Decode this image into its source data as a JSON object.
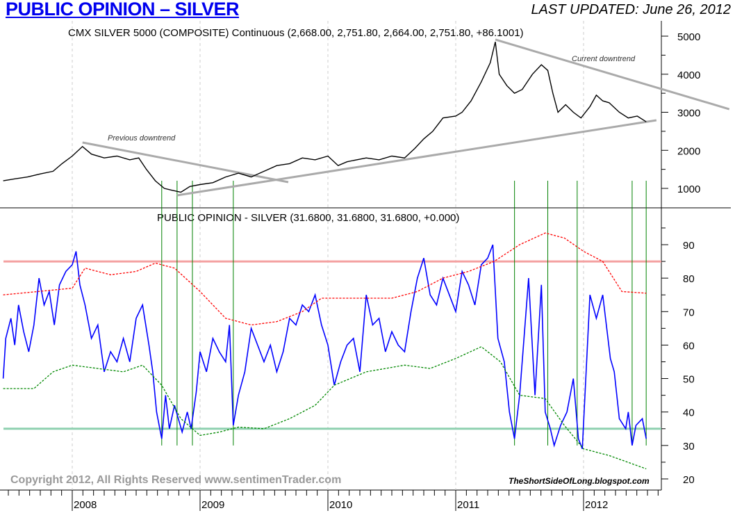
{
  "header": {
    "title": "PUBLIC OPINION – SILVER",
    "updated": "LAST UPDATED:  June 26, 2012"
  },
  "chart_data": [
    {
      "type": "line",
      "title": "CMX SILVER 5000 (COMPOSITE) Continuous (2,668.00, 2,751.80, 2,664.00, 2,751.80, +86.1001)",
      "ylim": [
        500,
        5400
      ],
      "yticks": [
        1000,
        2000,
        3000,
        4000,
        5000
      ],
      "series": [
        {
          "name": "CMX Silver",
          "color": "#000000",
          "points": [
            [
              2007.46,
              1200
            ],
            [
              2007.55,
              1250
            ],
            [
              2007.65,
              1300
            ],
            [
              2007.75,
              1380
            ],
            [
              2007.85,
              1450
            ],
            [
              2007.92,
              1650
            ],
            [
              2008.0,
              1850
            ],
            [
              2008.08,
              2100
            ],
            [
              2008.15,
              1900
            ],
            [
              2008.25,
              1800
            ],
            [
              2008.35,
              1850
            ],
            [
              2008.45,
              1750
            ],
            [
              2008.52,
              1800
            ],
            [
              2008.58,
              1500
            ],
            [
              2008.65,
              1200
            ],
            [
              2008.72,
              1000
            ],
            [
              2008.78,
              950
            ],
            [
              2008.85,
              900
            ],
            [
              2008.92,
              1050
            ],
            [
              2009.0,
              1100
            ],
            [
              2009.1,
              1150
            ],
            [
              2009.2,
              1300
            ],
            [
              2009.3,
              1400
            ],
            [
              2009.4,
              1300
            ],
            [
              2009.5,
              1450
            ],
            [
              2009.6,
              1600
            ],
            [
              2009.7,
              1650
            ],
            [
              2009.8,
              1800
            ],
            [
              2009.9,
              1750
            ],
            [
              2010.0,
              1850
            ],
            [
              2010.08,
              1600
            ],
            [
              2010.15,
              1700
            ],
            [
              2010.3,
              1800
            ],
            [
              2010.4,
              1750
            ],
            [
              2010.5,
              1850
            ],
            [
              2010.6,
              1800
            ],
            [
              2010.68,
              2050
            ],
            [
              2010.75,
              2300
            ],
            [
              2010.82,
              2500
            ],
            [
              2010.9,
              2850
            ],
            [
              2011.0,
              2900
            ],
            [
              2011.05,
              3000
            ],
            [
              2011.12,
              3300
            ],
            [
              2011.2,
              3800
            ],
            [
              2011.27,
              4300
            ],
            [
              2011.31,
              4850
            ],
            [
              2011.34,
              4000
            ],
            [
              2011.4,
              3700
            ],
            [
              2011.46,
              3500
            ],
            [
              2011.52,
              3600
            ],
            [
              2011.6,
              4000
            ],
            [
              2011.67,
              4250
            ],
            [
              2011.72,
              4100
            ],
            [
              2011.76,
              3500
            ],
            [
              2011.8,
              3000
            ],
            [
              2011.86,
              3200
            ],
            [
              2011.92,
              3000
            ],
            [
              2011.98,
              2850
            ],
            [
              2012.05,
              3150
            ],
            [
              2012.1,
              3450
            ],
            [
              2012.15,
              3300
            ],
            [
              2012.2,
              3250
            ],
            [
              2012.28,
              3000
            ],
            [
              2012.35,
              2850
            ],
            [
              2012.42,
              2900
            ],
            [
              2012.49,
              2750
            ]
          ]
        }
      ],
      "trendlines": [
        {
          "label": "Previous downtrend",
          "points": [
            [
              2008.08,
              2206
            ],
            [
              2009.69,
              1164
            ]
          ]
        },
        {
          "label": "Current downtrend",
          "points": [
            [
              2011.31,
              4909
            ],
            [
              2013.14,
              3082
            ]
          ]
        },
        {
          "label": "",
          "points": [
            [
              2008.82,
              818
            ],
            [
              2012.57,
              2790
            ]
          ]
        }
      ]
    },
    {
      "type": "line",
      "title": "PUBLIC OPINION - SILVER (31.6800, 31.6800, 31.6800, +0.000)",
      "ylim": [
        15,
        97
      ],
      "yticks": [
        20,
        30,
        40,
        50,
        60,
        70,
        80,
        90
      ],
      "xticks": [
        "2008",
        "2009",
        "2010",
        "2011",
        "2012"
      ],
      "xtick_values": [
        2008,
        2009,
        2010,
        2011,
        2012
      ],
      "hlines": [
        {
          "value": 85,
          "color": "#f4a0a0"
        },
        {
          "value": 35,
          "color": "#8fd0b0"
        }
      ],
      "marker_dates": [
        2008.7,
        2008.82,
        2008.94,
        2009.26,
        2011.46,
        2011.72,
        2011.95,
        2012.38,
        2012.49
      ],
      "series": [
        {
          "name": "Public Opinion",
          "color": "#0000ff",
          "points": [
            [
              2007.46,
              50
            ],
            [
              2007.48,
              62
            ],
            [
              2007.52,
              68
            ],
            [
              2007.55,
              60
            ],
            [
              2007.58,
              72
            ],
            [
              2007.62,
              64
            ],
            [
              2007.66,
              58
            ],
            [
              2007.7,
              66
            ],
            [
              2007.74,
              80
            ],
            [
              2007.78,
              72
            ],
            [
              2007.82,
              76
            ],
            [
              2007.86,
              66
            ],
            [
              2007.9,
              78
            ],
            [
              2007.95,
              82
            ],
            [
              2008.0,
              84
            ],
            [
              2008.03,
              88
            ],
            [
              2008.06,
              78
            ],
            [
              2008.1,
              72
            ],
            [
              2008.15,
              62
            ],
            [
              2008.2,
              66
            ],
            [
              2008.25,
              52
            ],
            [
              2008.3,
              58
            ],
            [
              2008.35,
              55
            ],
            [
              2008.4,
              62
            ],
            [
              2008.45,
              55
            ],
            [
              2008.5,
              68
            ],
            [
              2008.55,
              72
            ],
            [
              2008.6,
              60
            ],
            [
              2008.63,
              52
            ],
            [
              2008.66,
              40
            ],
            [
              2008.7,
              32
            ],
            [
              2008.73,
              45
            ],
            [
              2008.76,
              35
            ],
            [
              2008.8,
              42
            ],
            [
              2008.83,
              38
            ],
            [
              2008.86,
              34
            ],
            [
              2008.9,
              40
            ],
            [
              2008.93,
              35
            ],
            [
              2008.97,
              46
            ],
            [
              2009.0,
              58
            ],
            [
              2009.05,
              52
            ],
            [
              2009.1,
              62
            ],
            [
              2009.15,
              58
            ],
            [
              2009.2,
              55
            ],
            [
              2009.23,
              66
            ],
            [
              2009.26,
              36
            ],
            [
              2009.3,
              45
            ],
            [
              2009.35,
              52
            ],
            [
              2009.4,
              65
            ],
            [
              2009.5,
              55
            ],
            [
              2009.55,
              60
            ],
            [
              2009.6,
              52
            ],
            [
              2009.65,
              58
            ],
            [
              2009.7,
              68
            ],
            [
              2009.75,
              66
            ],
            [
              2009.8,
              72
            ],
            [
              2009.85,
              70
            ],
            [
              2009.9,
              75
            ],
            [
              2009.95,
              66
            ],
            [
              2010.0,
              60
            ],
            [
              2010.05,
              48
            ],
            [
              2010.1,
              55
            ],
            [
              2010.15,
              60
            ],
            [
              2010.2,
              62
            ],
            [
              2010.25,
              52
            ],
            [
              2010.3,
              75
            ],
            [
              2010.35,
              66
            ],
            [
              2010.4,
              68
            ],
            [
              2010.45,
              58
            ],
            [
              2010.5,
              64
            ],
            [
              2010.55,
              60
            ],
            [
              2010.6,
              58
            ],
            [
              2010.65,
              70
            ],
            [
              2010.7,
              80
            ],
            [
              2010.75,
              86
            ],
            [
              2010.8,
              75
            ],
            [
              2010.85,
              72
            ],
            [
              2010.9,
              80
            ],
            [
              2010.95,
              75
            ],
            [
              2011.0,
              70
            ],
            [
              2011.05,
              82
            ],
            [
              2011.1,
              78
            ],
            [
              2011.15,
              72
            ],
            [
              2011.2,
              84
            ],
            [
              2011.25,
              86
            ],
            [
              2011.29,
              90
            ],
            [
              2011.33,
              62
            ],
            [
              2011.38,
              55
            ],
            [
              2011.42,
              40
            ],
            [
              2011.46,
              32
            ],
            [
              2011.5,
              45
            ],
            [
              2011.57,
              80
            ],
            [
              2011.62,
              45
            ],
            [
              2011.67,
              78
            ],
            [
              2011.7,
              40
            ],
            [
              2011.74,
              35
            ],
            [
              2011.77,
              30
            ],
            [
              2011.82,
              36
            ],
            [
              2011.87,
              40
            ],
            [
              2011.92,
              50
            ],
            [
              2011.96,
              32
            ],
            [
              2011.99,
              29
            ],
            [
              2012.05,
              75
            ],
            [
              2012.1,
              68
            ],
            [
              2012.15,
              75
            ],
            [
              2012.21,
              56
            ],
            [
              2012.24,
              52
            ],
            [
              2012.28,
              38
            ],
            [
              2012.33,
              35
            ],
            [
              2012.35,
              40
            ],
            [
              2012.38,
              30
            ],
            [
              2012.41,
              36
            ],
            [
              2012.46,
              38
            ],
            [
              2012.49,
              32
            ]
          ]
        },
        {
          "name": "Upper band",
          "color": "#ff0000",
          "points": [
            [
              2007.46,
              75
            ],
            [
              2008.0,
              77
            ],
            [
              2008.1,
              83
            ],
            [
              2008.3,
              81
            ],
            [
              2008.5,
              82
            ],
            [
              2008.65,
              84.5
            ],
            [
              2008.8,
              83
            ],
            [
              2009.0,
              76
            ],
            [
              2009.2,
              68
            ],
            [
              2009.4,
              66
            ],
            [
              2009.6,
              67
            ],
            [
              2009.8,
              70
            ],
            [
              2009.95,
              74
            ],
            [
              2010.5,
              74
            ],
            [
              2010.7,
              76
            ],
            [
              2010.9,
              80
            ],
            [
              2011.1,
              82
            ],
            [
              2011.3,
              85
            ],
            [
              2011.5,
              90
            ],
            [
              2011.7,
              93.5
            ],
            [
              2011.85,
              92
            ],
            [
              2012.0,
              88
            ],
            [
              2012.15,
              85
            ],
            [
              2012.3,
              76
            ],
            [
              2012.49,
              75.5
            ]
          ]
        },
        {
          "name": "Lower band",
          "color": "#008800",
          "points": [
            [
              2007.46,
              47
            ],
            [
              2007.7,
              47
            ],
            [
              2007.85,
              52
            ],
            [
              2008.0,
              54
            ],
            [
              2008.2,
              53
            ],
            [
              2008.4,
              52
            ],
            [
              2008.55,
              54
            ],
            [
              2008.7,
              48
            ],
            [
              2008.85,
              38
            ],
            [
              2009.0,
              33
            ],
            [
              2009.15,
              34
            ],
            [
              2009.3,
              35.5
            ],
            [
              2009.5,
              35
            ],
            [
              2009.7,
              38
            ],
            [
              2009.9,
              42
            ],
            [
              2010.05,
              48
            ],
            [
              2010.3,
              52
            ],
            [
              2010.6,
              54
            ],
            [
              2010.8,
              53
            ],
            [
              2011.0,
              56
            ],
            [
              2011.2,
              59.5
            ],
            [
              2011.35,
              55
            ],
            [
              2011.5,
              45
            ],
            [
              2011.7,
              44
            ],
            [
              2011.85,
              36
            ],
            [
              2012.0,
              29
            ],
            [
              2012.2,
              27
            ],
            [
              2012.49,
              23
            ]
          ]
        }
      ]
    }
  ],
  "footer": {
    "copyright": "Copyright 2012, All Rights Reserved  www.sentimenTrader.com",
    "blog": "TheShortSideOfLong.blogspot.com"
  }
}
